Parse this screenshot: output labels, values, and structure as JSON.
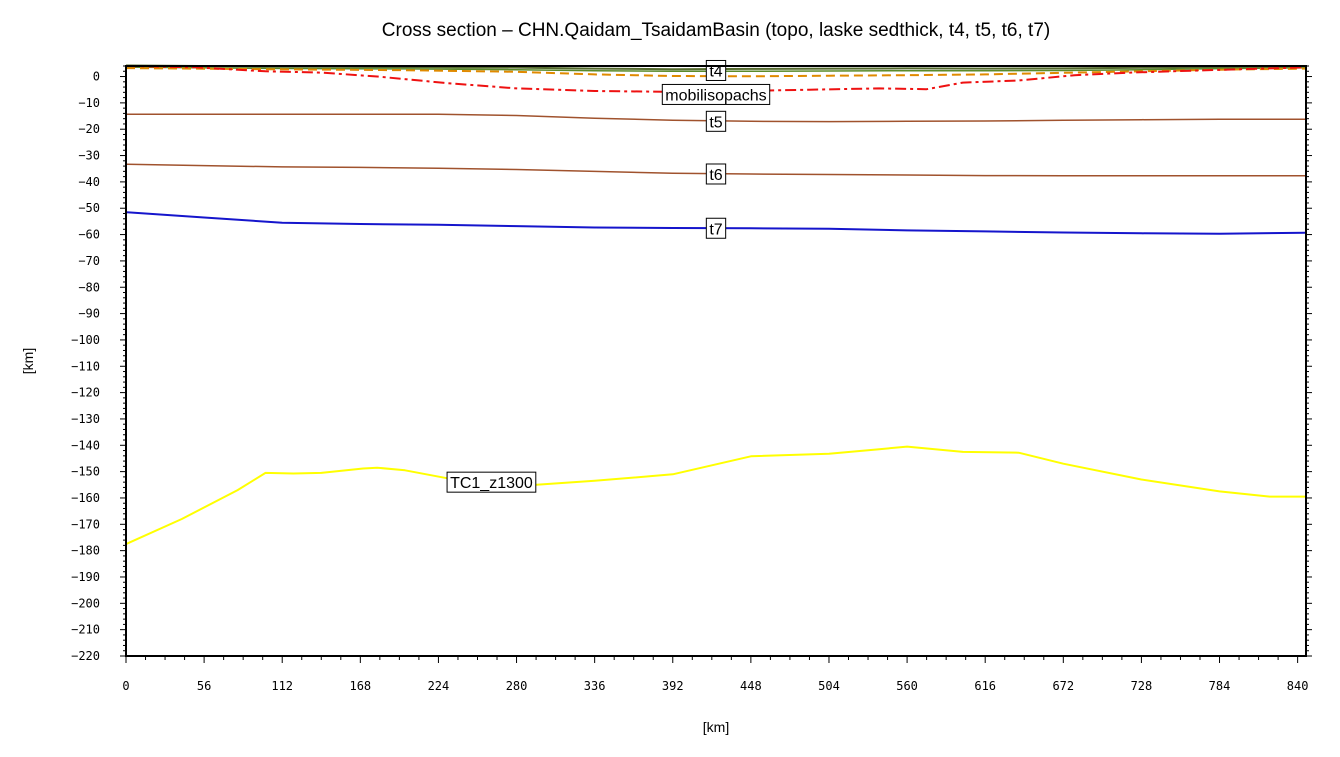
{
  "chart_data": {
    "type": "line",
    "title": "Cross section – CHN.Qaidam_TsaidamBasin (topo, laske sedthick, t4, t5, t6, t7)",
    "xlabel": "[km]",
    "ylabel": "[km]",
    "xlim": [
      0,
      846
    ],
    "ylim": [
      -220,
      4
    ],
    "x_ticks": [
      0,
      56,
      112,
      168,
      224,
      280,
      336,
      392,
      448,
      504,
      560,
      616,
      672,
      728,
      784,
      840
    ],
    "y_ticks": [
      0,
      -10,
      -20,
      -30,
      -40,
      -50,
      -60,
      -70,
      -80,
      -90,
      -100,
      -110,
      -120,
      -130,
      -140,
      -150,
      -160,
      -170,
      -180,
      -190,
      -200,
      -210,
      -220
    ],
    "y_tick_labels": [
      "0",
      "−10",
      "−20",
      "−30",
      "−40",
      "−50",
      "−60",
      "−70",
      "−80",
      "−90",
      "−100",
      "−110",
      "−120",
      "−130",
      "−140",
      "−150",
      "−160",
      "−170",
      "−180",
      "−190",
      "−200",
      "−210",
      "−220"
    ],
    "grid": false,
    "series": [
      {
        "key": "topo",
        "color": "#556b2f",
        "dash": "solid",
        "width": 2,
        "x": [
          0,
          100,
          200,
          280,
          336,
          392,
          448,
          504,
          560,
          616,
          672,
          728,
          784,
          846
        ],
        "y": [
          4.2,
          3.8,
          3.6,
          3.4,
          3.0,
          2.8,
          2.9,
          3.0,
          3.1,
          3.0,
          3.1,
          3.3,
          3.6,
          3.9
        ]
      },
      {
        "key": "t4",
        "name": "t4",
        "color": "#5a8a2a",
        "dash": "solid",
        "width": 1.5,
        "x": [
          0,
          100,
          200,
          280,
          336,
          392,
          448,
          504,
          560,
          616,
          672,
          728,
          784,
          846
        ],
        "y": [
          3.6,
          3.1,
          2.9,
          2.6,
          2.2,
          2.0,
          2.0,
          2.1,
          2.2,
          2.2,
          2.3,
          2.6,
          3.0,
          3.3
        ]
      },
      {
        "key": "sedthick",
        "color": "#e08a00",
        "dash": "dash",
        "width": 2,
        "x": [
          0,
          100,
          200,
          280,
          336,
          392,
          448,
          504,
          560,
          616,
          672,
          728,
          784,
          846
        ],
        "y": [
          3.2,
          2.8,
          2.4,
          1.8,
          0.8,
          0.2,
          0.1,
          0.3,
          0.5,
          0.8,
          1.4,
          2.0,
          2.6,
          3.0
        ]
      },
      {
        "key": "mobilisopachs",
        "name": "mobilisopachs",
        "color": "#ee1111",
        "dash": "dashdot",
        "width": 2,
        "x": [
          0,
          50,
          100,
          140,
          180,
          230,
          280,
          336,
          390,
          440,
          490,
          540,
          574,
          600,
          640,
          680,
          720,
          780,
          846
        ],
        "y": [
          4.0,
          3.5,
          2.0,
          1.5,
          0.0,
          -2.5,
          -4.5,
          -5.5,
          -5.8,
          -5.5,
          -5.0,
          -4.5,
          -4.8,
          -2.3,
          -1.5,
          0.5,
          1.5,
          2.5,
          3.5
        ]
      },
      {
        "key": "t5",
        "name": "t5",
        "color": "#a0522d",
        "dash": "solid",
        "width": 1.5,
        "x": [
          0,
          112,
          224,
          280,
          336,
          392,
          448,
          504,
          560,
          616,
          672,
          728,
          784,
          846
        ],
        "y": [
          -14.3,
          -14.3,
          -14.3,
          -14.8,
          -15.8,
          -16.6,
          -17.0,
          -17.1,
          -17.0,
          -16.9,
          -16.6,
          -16.4,
          -16.2,
          -16.2
        ]
      },
      {
        "key": "t6",
        "name": "t6",
        "color": "#a0522d",
        "dash": "solid",
        "width": 1.5,
        "x": [
          0,
          56,
          112,
          168,
          224,
          280,
          336,
          392,
          448,
          504,
          560,
          616,
          672,
          728,
          784,
          846
        ],
        "y": [
          -33.3,
          -33.8,
          -34.3,
          -34.5,
          -34.8,
          -35.3,
          -36.0,
          -36.7,
          -37.0,
          -37.2,
          -37.4,
          -37.6,
          -37.7,
          -37.7,
          -37.7,
          -37.7
        ]
      },
      {
        "key": "t7",
        "name": "t7",
        "color": "#1515cc",
        "dash": "solid",
        "width": 2,
        "x": [
          0,
          56,
          112,
          168,
          224,
          280,
          336,
          392,
          448,
          504,
          560,
          616,
          672,
          728,
          784,
          846
        ],
        "y": [
          -51.5,
          -53.5,
          -55.5,
          -56.0,
          -56.3,
          -56.8,
          -57.3,
          -57.5,
          -57.6,
          -57.8,
          -58.4,
          -58.8,
          -59.2,
          -59.5,
          -59.7,
          -59.3
        ]
      },
      {
        "key": "tc1",
        "name": "TC1_z1300",
        "color": "#ffff00",
        "dash": "solid",
        "width": 2,
        "x": [
          0,
          40,
          80,
          100,
          120,
          140,
          170,
          180,
          200,
          240,
          280,
          336,
          392,
          448,
          504,
          540,
          560,
          600,
          640,
          672,
          728,
          784,
          820,
          846
        ],
        "y": [
          -177.5,
          -168,
          -157,
          -150.5,
          -150.7,
          -150.5,
          -148.8,
          -148.5,
          -149.5,
          -153.5,
          -155.5,
          -153.5,
          -151,
          -144.2,
          -143.2,
          -141.5,
          -140.5,
          -142.5,
          -142.8,
          -147,
          -153,
          -157.5,
          -159.5,
          -159.5
        ]
      }
    ],
    "labels": [
      {
        "key": "t4",
        "text": "t4",
        "x": 423,
        "y": 2.3
      },
      {
        "key": "mobilisopachs",
        "text": "mobilisopachs",
        "x": 423,
        "y": -6.8
      },
      {
        "key": "t5",
        "text": "t5",
        "x": 423,
        "y": -17.0
      },
      {
        "key": "t6",
        "text": "t6",
        "x": 423,
        "y": -37.0
      },
      {
        "key": "t7",
        "text": "t7",
        "x": 423,
        "y": -57.6
      },
      {
        "key": "tc1",
        "text": "TC1_z1300",
        "x": 262,
        "y": -154.0
      }
    ]
  }
}
